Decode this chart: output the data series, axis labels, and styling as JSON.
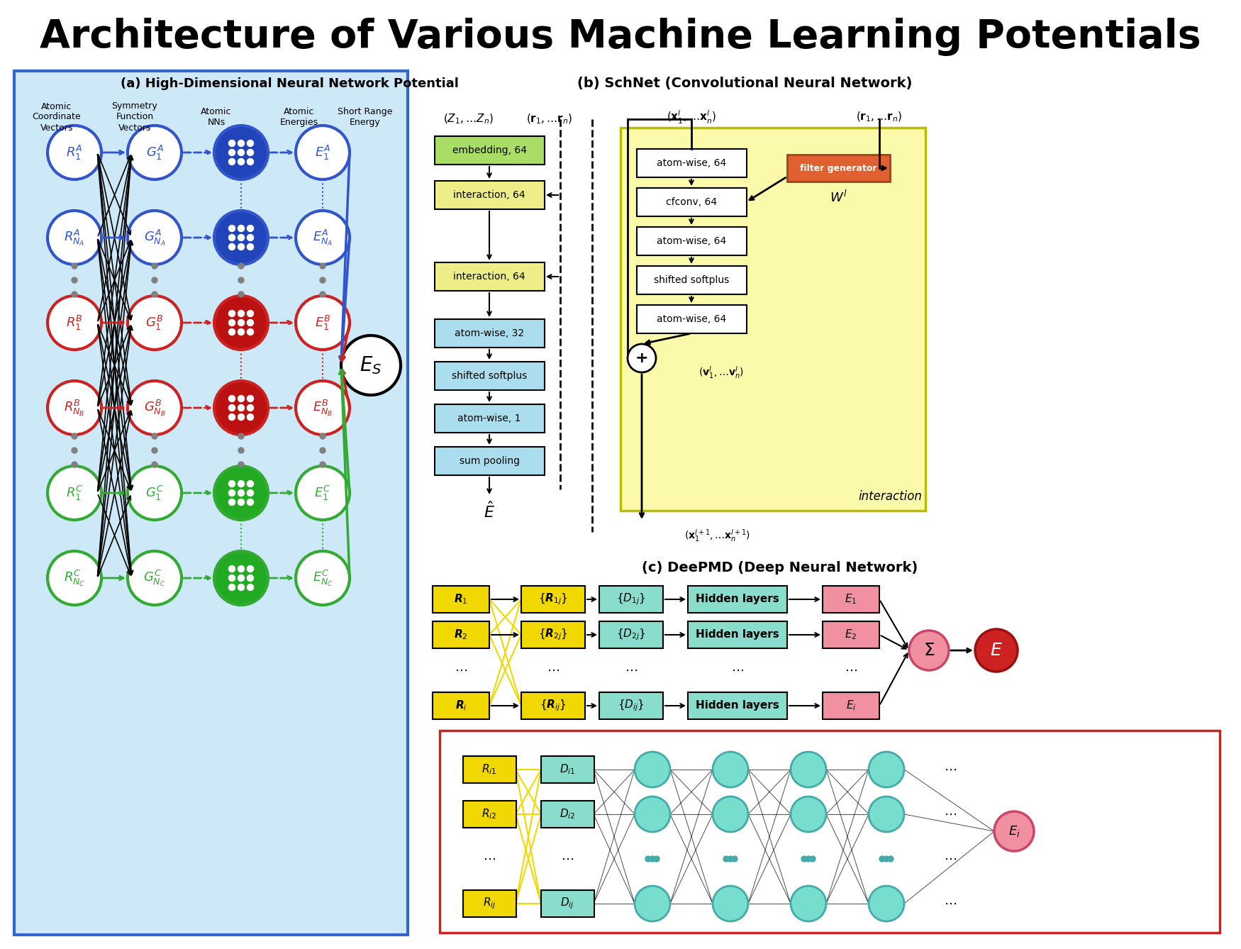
{
  "title": "Architecture of Various Machine Learning Potentials",
  "title_fontsize": 40,
  "bg_color": "#ffffff",
  "panel_a": {
    "label": "(a) High-Dimensional Neural Network Potential",
    "bg": "#cde8f7",
    "border": "#3366cc",
    "col_headers": [
      "Atomic\nCoordinate\nVectors",
      "Symmetry\nFunction\nVectors",
      "Atomic\nNNs",
      "Atomic\nEnergies",
      "Short Range\nEnergy"
    ],
    "row_labels_R": [
      "$R_1^A$",
      "$R_{N_A}^A$",
      "$R_1^B$",
      "$R_{N_B}^B$",
      "$R_1^C$",
      "$R_{N_C}^C$"
    ],
    "row_labels_G": [
      "$G_1^A$",
      "$G_{N_A}^A$",
      "$G_1^B$",
      "$G_{N_B}^B$",
      "$G_1^C$",
      "$G_{N_C}^C$"
    ],
    "row_labels_E": [
      "$E_1^A$",
      "$E_{N_A}^A$",
      "$E_1^B$",
      "$E_{N_B}^B$",
      "$E_1^C$",
      "$E_{N_C}^C$"
    ],
    "ring_colors": [
      "#3355cc",
      "#3355cc",
      "#cc2222",
      "#cc2222",
      "#33aa33",
      "#33aa33"
    ],
    "inner_colors_nn": [
      "#2244bb",
      "#2244bb",
      "#bb1111",
      "#bb1111",
      "#22aa22",
      "#22aa22"
    ],
    "Es_label": "$E_S$"
  },
  "panel_b": {
    "label": "(b) SchNet (Convolutional Neural Network)",
    "left_input1": "$(Z_1,\\ldots Z_n)$",
    "left_input2": "$(\\mathbf{r}_1,\\ldots \\mathbf{r}_n)$",
    "left_boxes": [
      {
        "text": "embedding, 64",
        "color": "#aadd66"
      },
      {
        "text": "interaction, 64",
        "color": "#eeee88"
      },
      {
        "text": "interaction, 64",
        "color": "#eeee88"
      },
      {
        "text": "atom-wise, 32",
        "color": "#aadded"
      },
      {
        "text": "shifted softplus",
        "color": "#aadded"
      },
      {
        "text": "atom-wise, 1",
        "color": "#aadded"
      },
      {
        "text": "sum pooling",
        "color": "#aadded"
      }
    ],
    "left_output": "$\\hat{E}$",
    "right_input1": "$(\\mathbf{x}_1^l,\\ldots \\mathbf{x}_n^l)$",
    "right_input2": "$(\\mathbf{r}_1,\\ldots \\mathbf{r}_n)$",
    "right_boxes": [
      {
        "text": "atom-wise, 64",
        "color": "#ffffff"
      },
      {
        "text": "cfconv, 64",
        "color": "#ffffff"
      },
      {
        "text": "atom-wise, 64",
        "color": "#ffffff"
      },
      {
        "text": "shifted softplus",
        "color": "#ffffff"
      },
      {
        "text": "atom-wise, 64",
        "color": "#ffffff"
      }
    ],
    "filter_text": "filter generator",
    "filter_color": "#e06030",
    "filter_label": "$W^l$",
    "right_bg": "#fafaaa",
    "right_border": "#bbbb00",
    "v_label": "$(\\mathbf{v}_1^l,\\ldots \\mathbf{v}_n^l)$",
    "out_label": "$(\\mathbf{x}_1^{l+1},\\ldots \\mathbf{x}_n^{l+1})$",
    "interaction_label": "interaction"
  },
  "panel_c": {
    "label": "(c) DeePMD (Deep Neural Network)",
    "rows": [
      "$\\boldsymbol{R}_1$",
      "$\\boldsymbol{R}_2$",
      "$\\cdots$",
      "$\\boldsymbol{R}_i$"
    ],
    "col2": [
      "$\\{\\boldsymbol{R}_{1j}\\}$",
      "$\\{\\boldsymbol{R}_{2j}\\}$",
      "$\\cdots$",
      "$\\{\\boldsymbol{R}_{ij}\\}$"
    ],
    "col3": [
      "$\\{D_{1j}\\}$",
      "$\\{D_{2j}\\}$",
      "$\\cdots$",
      "$\\{D_{ij}\\}$"
    ],
    "col4": [
      "Hidden layers",
      "Hidden layers",
      "$\\cdots$",
      "Hidden layers"
    ],
    "col5": [
      "$E_1$",
      "$E_2$",
      "$\\cdots$",
      "$E_i$"
    ],
    "yellow": "#f0d800",
    "cyan": "#88ddcc",
    "pink": "#f090a0",
    "sigma_color": "#f090a0",
    "E_color": "#cc2222",
    "det_rows": [
      "$R_{i1}$",
      "$R_{i2}$",
      "$\\cdots$",
      "$R_{ij}$"
    ],
    "det_col2": [
      "$D_{i1}$",
      "$D_{i2}$",
      "$\\cdots$",
      "$D_{ij}$"
    ],
    "node_color": "#77ddcc",
    "node_edge": "#44aaaa"
  }
}
